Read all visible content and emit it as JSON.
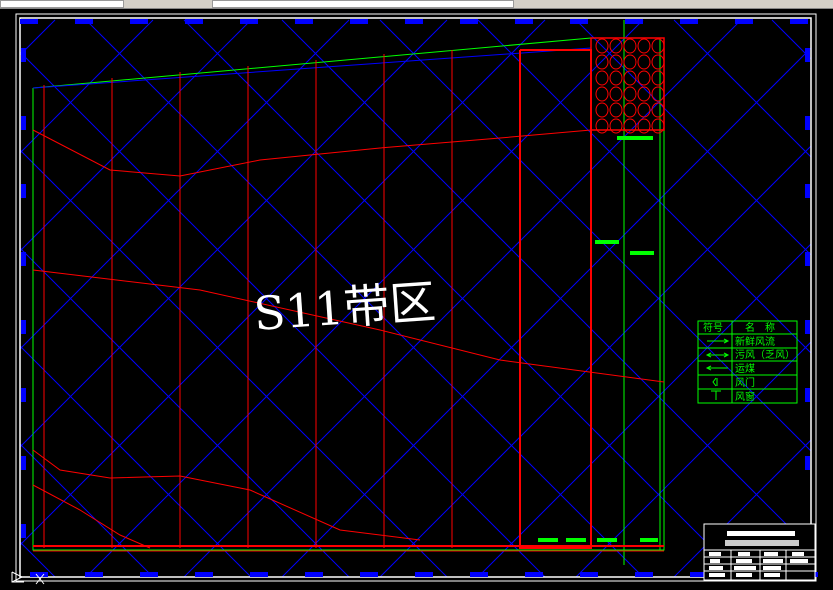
{
  "drawing": {
    "label": "S11带区",
    "colors": {
      "background": "#000000",
      "frame": "#ffffff",
      "grid": "#0000ff",
      "roadway": "#ff0000",
      "outline": "#00ff00",
      "marker": "#00ff00"
    }
  },
  "legend": {
    "header_symbol": "符号",
    "header_name": "名　称",
    "rows": [
      {
        "symbol": "arrow-right-icon",
        "name": "新鲜风流"
      },
      {
        "symbol": "double-arrow-icon",
        "name": "污风（乏风）"
      },
      {
        "symbol": "arrow-left-icon",
        "name": "运煤"
      },
      {
        "symbol": "air-door-icon",
        "name": "风门"
      },
      {
        "symbol": "air-window-icon",
        "name": "风窗"
      }
    ]
  }
}
